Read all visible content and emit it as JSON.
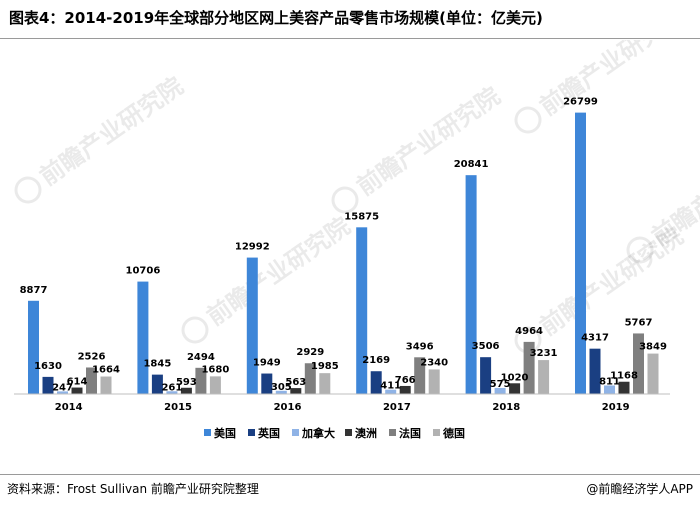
{
  "header": {
    "title": "图表4：2014-2019年全球部分地区网上美容产品零售市场规模(单位：亿美元)"
  },
  "footer": {
    "source": "资料来源：Frost Sullivan 前瞻产业研究院整理",
    "brand": "@前瞻经济学人APP"
  },
  "watermark": {
    "text": "前瞻产业研究院"
  },
  "chart_data": {
    "type": "bar",
    "title": "图表4：2014-2019年全球部分地区网上美容产品零售市场规模(单位：亿美元)",
    "xlabel": "",
    "ylabel": "",
    "categories": [
      "2014",
      "2015",
      "2016",
      "2017",
      "2018",
      "2019"
    ],
    "series": [
      {
        "name": "美国",
        "color": "#3e86d8",
        "values": [
          8877,
          10706,
          12992,
          15875,
          20841,
          26799
        ]
      },
      {
        "name": "英国",
        "color": "#1a3f82",
        "values": [
          1630,
          1845,
          1949,
          2169,
          3506,
          4317
        ]
      },
      {
        "name": "加拿大",
        "color": "#8fb3e6",
        "values": [
          247,
          261,
          305,
          411,
          575,
          811
        ]
      },
      {
        "name": "澳洲",
        "color": "#333333",
        "values": [
          614,
          593,
          563,
          766,
          1020,
          1168
        ]
      },
      {
        "name": "法国",
        "color": "#7f7f7f",
        "values": [
          2526,
          2494,
          2929,
          3496,
          4964,
          5767
        ]
      },
      {
        "name": "德国",
        "color": "#b2b2b2",
        "values": [
          1664,
          1680,
          1985,
          2340,
          3231,
          3849
        ]
      }
    ],
    "ylim": [
      0,
      28000
    ],
    "grid": false,
    "legend_position": "bottom"
  }
}
